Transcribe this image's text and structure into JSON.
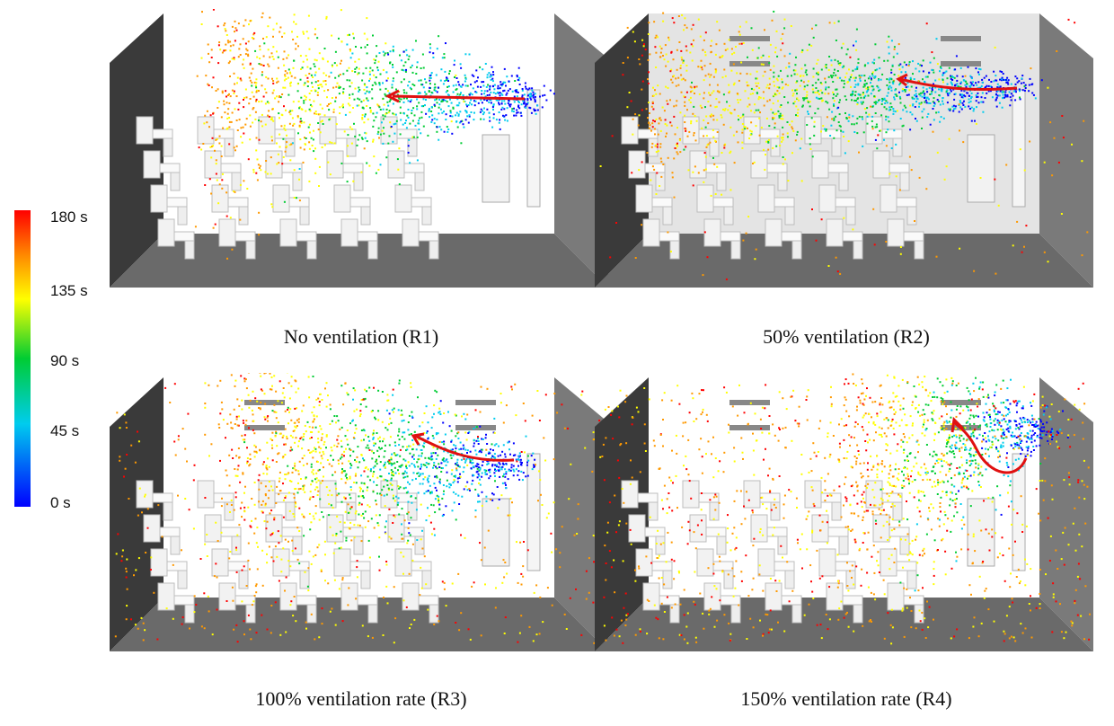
{
  "colorbar": {
    "ticks": [
      "180 s",
      "135 s",
      "90 s",
      "45 s",
      "0 s"
    ],
    "colors": [
      "#ff0000",
      "#ff9900",
      "#ffff00",
      "#00cc33",
      "#00ccee",
      "#0000ff"
    ]
  },
  "panels": [
    {
      "caption": "No ventilation (R1)"
    },
    {
      "caption": "50% ventilation (R2)"
    },
    {
      "caption": "100% ventilation rate (R3)"
    },
    {
      "caption": "150% ventilation rate (R4)"
    }
  ]
}
